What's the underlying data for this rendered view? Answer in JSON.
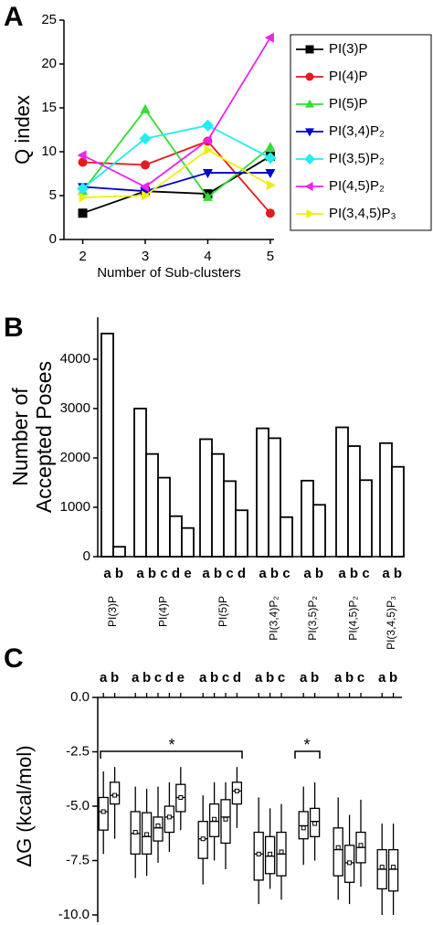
{
  "chart_data": [
    {
      "type": "line",
      "panel": "A",
      "xlabel": "Number of Sub-clusters",
      "ylabel": "Q index",
      "x": [
        2,
        3,
        4,
        5
      ],
      "xlim": [
        1.7,
        5.06
      ],
      "xticks": [
        2,
        3,
        4,
        5
      ],
      "ylim": [
        0,
        25
      ],
      "yticks": [
        0,
        5,
        10,
        15,
        20,
        25
      ],
      "series": [
        {
          "name": "PI(3)P",
          "color": "#000000",
          "marker": "square",
          "values": [
            3,
            5.5,
            5.2,
            9.5
          ]
        },
        {
          "name": "PI(4)P",
          "color": "#e41a1c",
          "marker": "circle",
          "values": [
            8.8,
            8.5,
            11.2,
            3
          ]
        },
        {
          "name": "PI(5)P",
          "color": "#33dd33",
          "marker": "triangle-up",
          "values": [
            5.5,
            14.8,
            4.8,
            10.5
          ]
        },
        {
          "name": "PI(3,4)P₂",
          "color": "#0000cc",
          "marker": "triangle-down",
          "values": [
            6,
            5.5,
            7.6,
            7.6
          ]
        },
        {
          "name": "PI(3,5)P₂",
          "color": "#22eeee",
          "marker": "diamond",
          "values": [
            5.8,
            11.5,
            13,
            9.3
          ]
        },
        {
          "name": "PI(4,5)P₂",
          "color": "#ee22ee",
          "marker": "triangle-left",
          "values": [
            9.6,
            6,
            11.3,
            23
          ]
        },
        {
          "name": "PI(3,4,5)P₃",
          "color": "#eeee11",
          "marker": "triangle-right",
          "values": [
            4.8,
            5,
            10.2,
            6.2
          ]
        }
      ]
    },
    {
      "type": "bar",
      "panel": "B",
      "ylabel": [
        "Number of",
        "Accepted Poses"
      ],
      "ylim": [
        0,
        4850
      ],
      "yticks": [
        0,
        1000,
        2000,
        3000,
        4000
      ],
      "groups": [
        {
          "name": "PI(3)P",
          "categories": [
            "a",
            "b"
          ],
          "values": [
            4520,
            200
          ]
        },
        {
          "name": "PI(4)P",
          "categories": [
            "a",
            "b",
            "c",
            "d",
            "e"
          ],
          "values": [
            3000,
            2080,
            1600,
            820,
            580
          ]
        },
        {
          "name": "PI(5)P",
          "categories": [
            "a",
            "b",
            "c",
            "d"
          ],
          "values": [
            2380,
            2080,
            1530,
            940
          ]
        },
        {
          "name": "PI(3,4)P₂",
          "categories": [
            "a",
            "b",
            "c"
          ],
          "values": [
            2600,
            2400,
            800
          ]
        },
        {
          "name": "PI(3,5)P₂",
          "categories": [
            "a",
            "b"
          ],
          "values": [
            1540,
            1050
          ]
        },
        {
          "name": "PI(4,5)P₂",
          "categories": [
            "a",
            "b",
            "c"
          ],
          "values": [
            2620,
            2240,
            1550
          ]
        },
        {
          "name": "PI(3,4,5)P₃",
          "categories": [
            "a",
            "b"
          ],
          "values": [
            2300,
            1820
          ]
        }
      ]
    },
    {
      "type": "box",
      "panel": "C",
      "ylabel": "ΔG (kcal/mol)",
      "ylim": [
        -10,
        0
      ],
      "yticks": [
        {
          "value": 0,
          "label": "0.0"
        },
        -2.5,
        {
          "value": -5,
          "label": "-5.0"
        },
        -7.5,
        {
          "value": -10,
          "label": "-10.0"
        }
      ],
      "annotations": [
        "*",
        "*"
      ],
      "groups": [
        {
          "categories": [
            "a",
            "b"
          ],
          "boxes": [
            {
              "min": -7.2,
              "q1": -6.1,
              "median": -5.25,
              "q3": -4.6,
              "max": -3.4,
              "mean": -5.25
            },
            {
              "min": -6.5,
              "q1": -4.9,
              "median": -4.5,
              "q3": -3.9,
              "max": -3.2,
              "mean": -4.5
            }
          ]
        },
        {
          "categories": [
            "a",
            "b",
            "c",
            "d",
            "e"
          ],
          "boxes": [
            {
              "min": -8.3,
              "q1": -7.2,
              "median": -6.25,
              "q3": -5.25,
              "max": -4.1,
              "mean": -6.2
            },
            {
              "min": -8.2,
              "q1": -7.2,
              "median": -6.4,
              "q3": -5.3,
              "max": -4.2,
              "mean": -6.3
            },
            {
              "min": -7.6,
              "q1": -6.6,
              "median": -6.0,
              "q3": -5.5,
              "max": -4.1,
              "mean": -5.9
            },
            {
              "min": -7.1,
              "q1": -6.2,
              "median": -5.5,
              "q3": -5.0,
              "max": -3.9,
              "mean": -5.5
            },
            {
              "min": -6.1,
              "q1": -5.25,
              "median": -4.6,
              "q3": -4.0,
              "max": -3.2,
              "mean": -4.6
            }
          ]
        },
        {
          "categories": [
            "a",
            "b",
            "c",
            "d"
          ],
          "boxes": [
            {
              "min": -8.6,
              "q1": -7.4,
              "median": -6.5,
              "q3": -5.7,
              "max": -4.5,
              "mean": -6.5
            },
            {
              "min": -7.5,
              "q1": -6.4,
              "median": -5.7,
              "q3": -4.9,
              "max": -3.9,
              "mean": -5.6
            },
            {
              "min": -7.9,
              "q1": -6.7,
              "median": -5.5,
              "q3": -4.7,
              "max": -3.9,
              "mean": -5.6
            },
            {
              "min": -6.0,
              "q1": -4.9,
              "median": -4.3,
              "q3": -3.9,
              "max": -3.2,
              "mean": -4.3
            }
          ]
        },
        {
          "categories": [
            "a",
            "b",
            "c"
          ],
          "boxes": [
            {
              "min": -9.5,
              "q1": -8.4,
              "median": -7.2,
              "q3": -6.2,
              "max": -4.6,
              "mean": -7.2
            },
            {
              "min": -8.8,
              "q1": -8.1,
              "median": -7.3,
              "q3": -6.4,
              "max": -5.1,
              "mean": -7.2
            },
            {
              "min": -9.3,
              "q1": -8.2,
              "median": -7.2,
              "q3": -6.2,
              "max": -4.9,
              "mean": -7.1
            }
          ]
        },
        {
          "categories": [
            "a",
            "b"
          ],
          "boxes": [
            {
              "min": -7.7,
              "q1": -6.5,
              "median": -5.9,
              "q3": -5.25,
              "max": -4.1,
              "mean": -6.0
            },
            {
              "min": -7.5,
              "q1": -6.4,
              "median": -5.7,
              "q3": -5.1,
              "max": -3.9,
              "mean": -5.8
            }
          ]
        },
        {
          "categories": [
            "a",
            "b",
            "c"
          ],
          "boxes": [
            {
              "min": -9.3,
              "q1": -8.2,
              "median": -7.0,
              "q3": -6.0,
              "max": -4.6,
              "mean": -6.9
            },
            {
              "min": -9.5,
              "q1": -8.5,
              "median": -7.6,
              "q3": -6.8,
              "max": -5.4,
              "mean": -7.6
            },
            {
              "min": -8.7,
              "q1": -7.6,
              "median": -6.9,
              "q3": -6.2,
              "max": -4.7,
              "mean": -6.8
            }
          ]
        },
        {
          "categories": [
            "a",
            "b"
          ],
          "boxes": [
            {
              "min": -10,
              "q1": -8.8,
              "median": -7.9,
              "q3": -7.0,
              "max": -5.8,
              "mean": -7.8
            },
            {
              "min": -10,
              "q1": -8.9,
              "median": -7.9,
              "q3": -7.0,
              "max": -5.8,
              "mean": -7.8
            }
          ]
        }
      ]
    }
  ]
}
